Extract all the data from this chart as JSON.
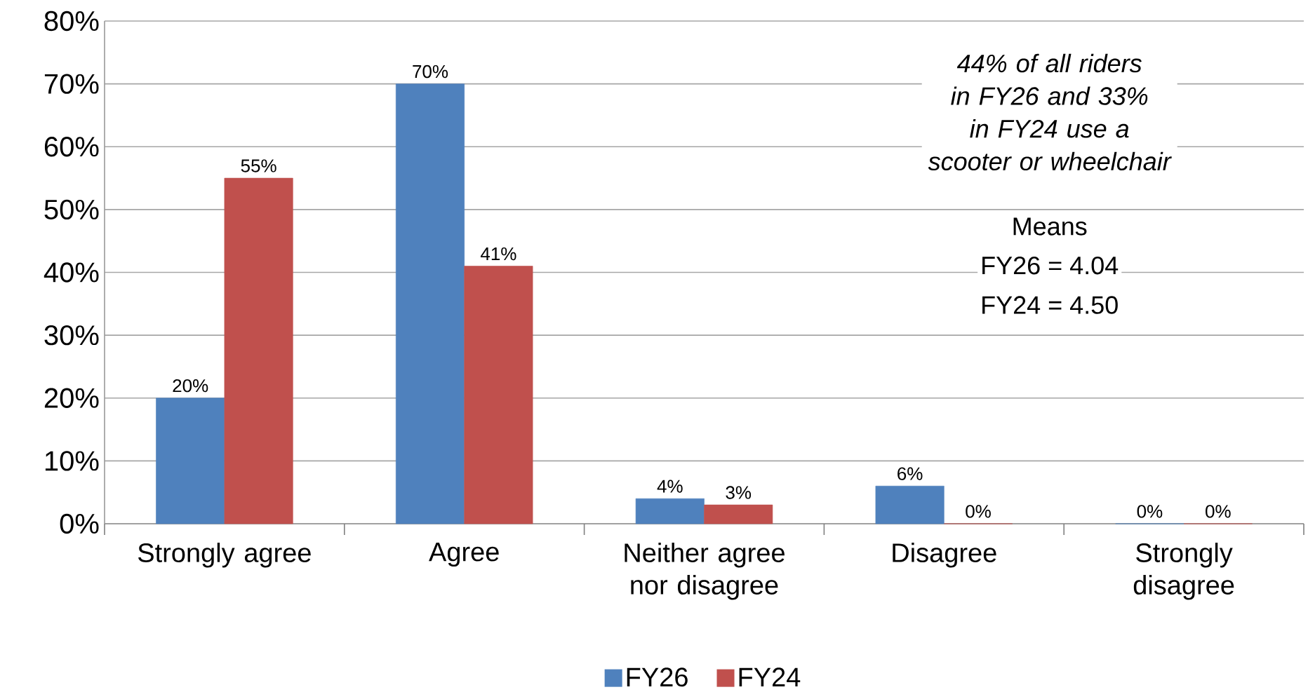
{
  "chart_data": {
    "type": "bar",
    "categories": [
      "Strongly agree",
      "Agree",
      "Neither agree nor disagree",
      "Disagree",
      "Strongly disagree"
    ],
    "series": [
      {
        "name": "FY26",
        "color": "#4f81bd",
        "values": [
          20,
          70,
          4,
          6,
          0
        ],
        "value_labels": [
          "20%",
          "70%",
          "4%",
          "6%",
          "0%"
        ]
      },
      {
        "name": "FY24",
        "color": "#c0504d",
        "values": [
          55,
          41,
          3,
          0,
          0
        ],
        "value_labels": [
          "55%",
          "41%",
          "3%",
          "0%",
          "0%"
        ]
      }
    ],
    "ylim": [
      0,
      80
    ],
    "yticks": [
      {
        "value": 0,
        "label": "0%"
      },
      {
        "value": 10,
        "label": "10%"
      },
      {
        "value": 20,
        "label": "20%"
      },
      {
        "value": 30,
        "label": "30%"
      },
      {
        "value": 40,
        "label": "40%"
      },
      {
        "value": 50,
        "label": "50%"
      },
      {
        "value": 60,
        "label": "60%"
      },
      {
        "value": 70,
        "label": "70%"
      },
      {
        "value": 80,
        "label": "80%"
      }
    ],
    "grid": "y",
    "legend": "bottom",
    "annotations": [
      "44% of all riders in FY26 and 33% in FY24 use a scooter or wheelchair",
      "Means",
      "FY26 = 4.04",
      "FY24 = 4.50"
    ]
  }
}
